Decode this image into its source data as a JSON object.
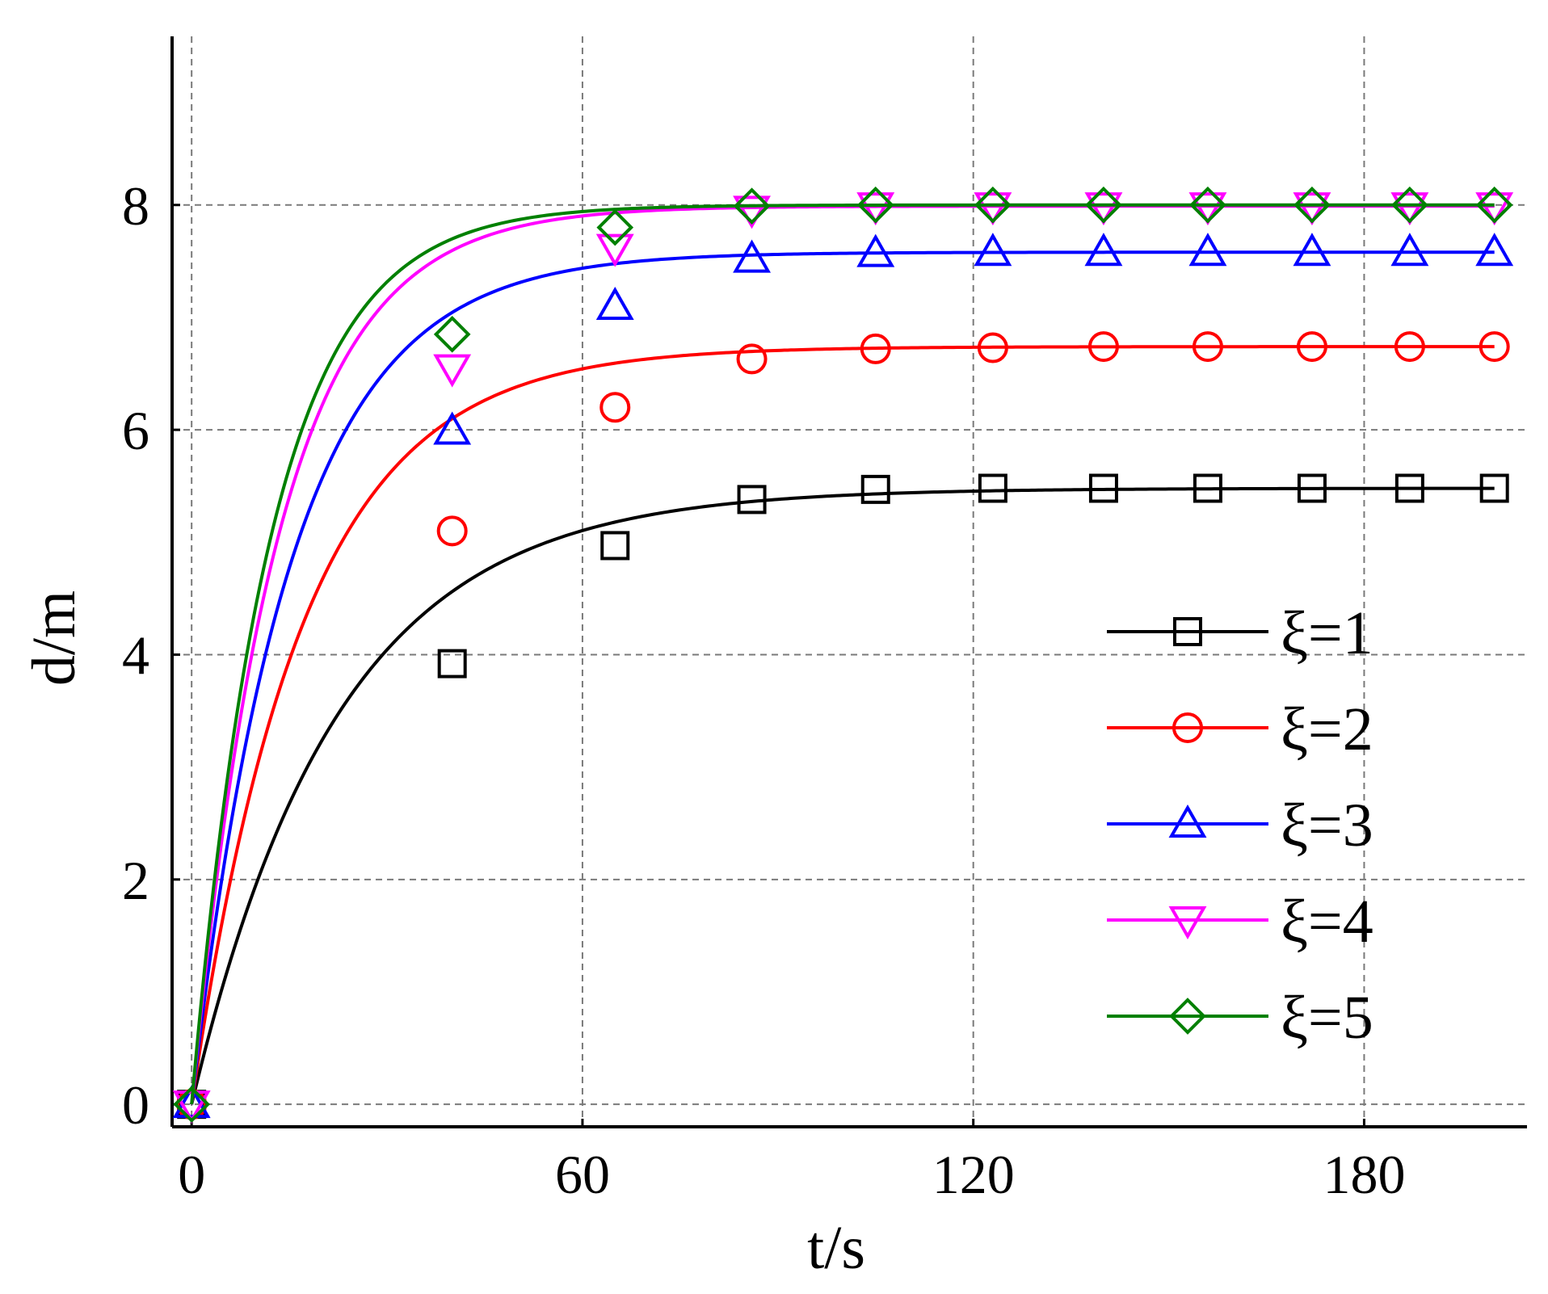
{
  "chart_data": {
    "type": "line",
    "title": "",
    "xlabel": "t/s",
    "ylabel": "d/m",
    "xlim": [
      -3,
      205
    ],
    "ylim": [
      -0.2,
      9.5
    ],
    "xticks": [
      0,
      60,
      120,
      180
    ],
    "yticks": [
      0,
      2,
      4,
      6,
      8
    ],
    "grid": true,
    "legend_position": "lower-right",
    "series": [
      {
        "name": "ξ=1",
        "color": "#000000",
        "marker": "square",
        "final": 5.48,
        "tau": 22.4,
        "marker_x": [
          0,
          40,
          65,
          86,
          105,
          123,
          140,
          156,
          172,
          187,
          200
        ],
        "marker_y": [
          0,
          3.92,
          4.97,
          5.38,
          5.47,
          5.48,
          5.48,
          5.48,
          5.48,
          5.48,
          5.48
        ]
      },
      {
        "name": "ξ=2",
        "color": "#ff0000",
        "marker": "circle",
        "final": 6.74,
        "tau": 17.0,
        "marker_x": [
          0,
          40,
          65,
          86,
          105,
          123,
          140,
          156,
          172,
          187,
          200
        ],
        "marker_y": [
          0,
          5.1,
          6.2,
          6.63,
          6.72,
          6.73,
          6.74,
          6.74,
          6.74,
          6.74,
          6.74
        ]
      },
      {
        "name": "ξ=3",
        "color": "#0000ff",
        "marker": "triangle-up",
        "final": 7.58,
        "tau": 15.1,
        "marker_x": [
          0,
          40,
          65,
          86,
          105,
          123,
          140,
          156,
          172,
          187,
          200
        ],
        "marker_y": [
          0,
          5.99,
          7.1,
          7.52,
          7.57,
          7.58,
          7.58,
          7.58,
          7.58,
          7.58,
          7.58
        ]
      },
      {
        "name": "ξ=4",
        "color": "#ff00ff",
        "marker": "triangle-down",
        "final": 7.99,
        "tau": 13.3,
        "marker_x": [
          0,
          40,
          65,
          86,
          105,
          123,
          140,
          156,
          172,
          187,
          200
        ],
        "marker_y": [
          0,
          6.55,
          7.62,
          7.96,
          7.99,
          7.99,
          7.99,
          7.99,
          7.99,
          7.99,
          7.99
        ]
      },
      {
        "name": "ξ=5",
        "color": "#008000",
        "marker": "diamond",
        "final": 8.0,
        "tau": 12.2,
        "marker_x": [
          0,
          40,
          65,
          86,
          105,
          123,
          140,
          156,
          172,
          187,
          200
        ],
        "marker_y": [
          0,
          6.85,
          7.8,
          7.99,
          8.0,
          8.0,
          8.0,
          8.0,
          8.0,
          8.0,
          8.0
        ]
      }
    ]
  }
}
